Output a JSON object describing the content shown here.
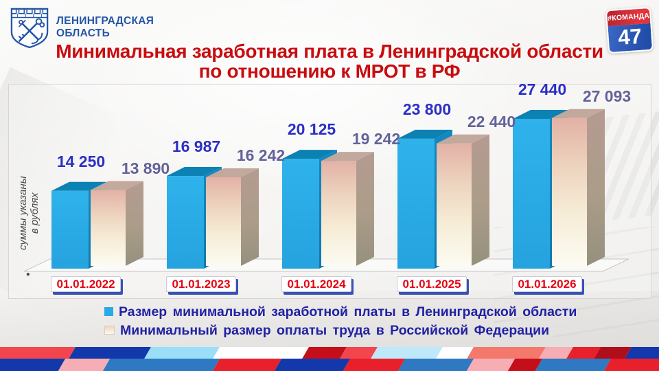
{
  "header": {
    "logo": {
      "line1": "ЛЕНИНГРАДСКАЯ",
      "line2": "ОБЛАСТЬ"
    },
    "badge": {
      "hashtag": "#КОМАНДА",
      "number": "47"
    }
  },
  "title": {
    "line1": "Минимальная заработная плата в Ленинградской области",
    "line2": "по отношению к МРОТ в РФ"
  },
  "y_axis_note": {
    "bullet": "•",
    "line1": "суммы указаны",
    "line2": "в рублях"
  },
  "chart_data": {
    "type": "bar",
    "categories": [
      "01.01.2022",
      "01.01.2023",
      "01.01.2024",
      "01.01.2025",
      "01.01.2026"
    ],
    "series": [
      {
        "name": "Размер минимальной заработной платы в Ленинградской области",
        "values": [
          14250,
          16987,
          20125,
          23800,
          27440
        ],
        "labels": [
          "14 250",
          "16 987",
          "20 125",
          "23 800",
          "27 440"
        ],
        "color": "#29A9E5",
        "label_color": "#2B2FC5"
      },
      {
        "name": "Минимальный размер оплаты труда в Российской Федерации",
        "values": [
          13890,
          16242,
          19242,
          22440,
          27093
        ],
        "labels": [
          "13 890",
          "16 242",
          "19 242",
          "22 440",
          "27 093"
        ],
        "color": "#F2E0C8",
        "label_color": "#63639A"
      }
    ],
    "ylim": [
      0,
      27440
    ],
    "grid": false,
    "legend_position": "bottom",
    "style": "3d-bars"
  },
  "colors": {
    "title": "#C80D10",
    "date_text": "#E30613",
    "date_shadow": "#3A51B5",
    "legend_text": "#2121A5",
    "series1_front": "#29A9E5",
    "series1_top": "#0C81B3",
    "series2_top": "#C2A89D",
    "badge_red": "#D43038",
    "badge_blue": "#2A55B2",
    "logo_blue": "#2456A8"
  }
}
